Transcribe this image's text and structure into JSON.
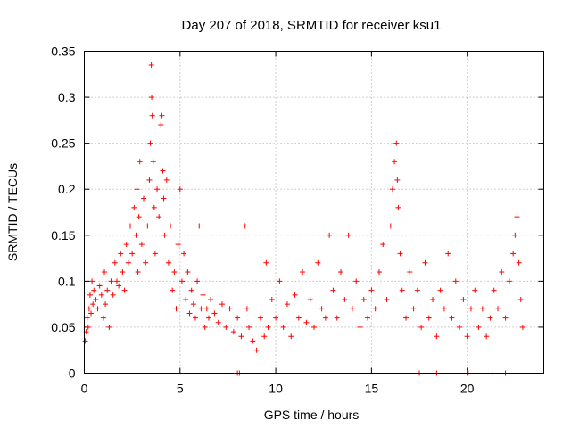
{
  "chart_data": {
    "type": "scatter",
    "title": "Day 207 of 2018, SRMTID for receiver ksu1",
    "xlabel": "GPS time / hours",
    "ylabel": "SRMTID / TECUs",
    "xlim": [
      0,
      24
    ],
    "ylim": [
      0,
      0.35
    ],
    "xticks": [
      0,
      5,
      10,
      15,
      20
    ],
    "xtick_labels": [
      "0",
      "5",
      "10",
      "15",
      "20"
    ],
    "yticks": [
      0,
      0.05,
      0.1,
      0.15,
      0.2,
      0.25,
      0.3,
      0.35
    ],
    "ytick_labels": [
      "0",
      "0.05",
      "0.1",
      "0.15",
      "0.2",
      "0.25",
      "0.3",
      "0.35"
    ],
    "grid": true,
    "legend": "none",
    "marker": "plus",
    "color": "#ff0000",
    "series": [
      {
        "name": "SRMTID",
        "points": [
          [
            0.05,
            0.035
          ],
          [
            0.1,
            0.045
          ],
          [
            0.15,
            0.06
          ],
          [
            0.2,
            0.05
          ],
          [
            0.25,
            0.07
          ],
          [
            0.3,
            0.085
          ],
          [
            0.35,
            0.065
          ],
          [
            0.4,
            0.1
          ],
          [
            0.45,
            0.075
          ],
          [
            0.5,
            0.09
          ],
          [
            0.6,
            0.08
          ],
          [
            0.7,
            0.07
          ],
          [
            0.8,
            0.095
          ],
          [
            0.9,
            0.085
          ],
          [
            1.0,
            0.06
          ],
          [
            1.05,
            0.11
          ],
          [
            1.1,
            0.075
          ],
          [
            1.2,
            0.09
          ],
          [
            1.3,
            0.05
          ],
          [
            1.4,
            0.1
          ],
          [
            1.5,
            0.085
          ],
          [
            1.6,
            0.12
          ],
          [
            1.7,
            0.1
          ],
          [
            1.8,
            0.095
          ],
          [
            1.9,
            0.13
          ],
          [
            2.0,
            0.11
          ],
          [
            2.1,
            0.09
          ],
          [
            2.2,
            0.14
          ],
          [
            2.3,
            0.12
          ],
          [
            2.4,
            0.16
          ],
          [
            2.5,
            0.13
          ],
          [
            2.6,
            0.18
          ],
          [
            2.7,
            0.15
          ],
          [
            2.75,
            0.2
          ],
          [
            2.8,
            0.11
          ],
          [
            2.85,
            0.17
          ],
          [
            2.9,
            0.23
          ],
          [
            3.0,
            0.14
          ],
          [
            3.1,
            0.19
          ],
          [
            3.2,
            0.12
          ],
          [
            3.3,
            0.16
          ],
          [
            3.4,
            0.21
          ],
          [
            3.45,
            0.25
          ],
          [
            3.5,
            0.335
          ],
          [
            3.52,
            0.3
          ],
          [
            3.55,
            0.28
          ],
          [
            3.6,
            0.23
          ],
          [
            3.65,
            0.18
          ],
          [
            3.7,
            0.13
          ],
          [
            3.8,
            0.2
          ],
          [
            3.9,
            0.17
          ],
          [
            4.0,
            0.27
          ],
          [
            4.05,
            0.28
          ],
          [
            4.1,
            0.22
          ],
          [
            4.15,
            0.19
          ],
          [
            4.2,
            0.15
          ],
          [
            4.3,
            0.21
          ],
          [
            4.4,
            0.12
          ],
          [
            4.5,
            0.16
          ],
          [
            4.6,
            0.09
          ],
          [
            4.7,
            0.11
          ],
          [
            4.8,
            0.07
          ],
          [
            4.9,
            0.14
          ],
          [
            5.0,
            0.2
          ],
          [
            5.1,
            0.1
          ],
          [
            5.2,
            0.13
          ],
          [
            5.3,
            0.08
          ],
          [
            5.4,
            0.11
          ],
          [
            5.5,
            0.065
          ],
          [
            5.6,
            0.09
          ],
          [
            5.7,
            0.075
          ],
          [
            5.8,
            0.06
          ],
          [
            5.9,
            0.1
          ],
          [
            6.0,
            0.16
          ],
          [
            6.1,
            0.07
          ],
          [
            6.2,
            0.085
          ],
          [
            6.3,
            0.05
          ],
          [
            6.4,
            0.07
          ],
          [
            6.5,
            0.06
          ],
          [
            6.6,
            0.08
          ],
          [
            6.8,
            0.065
          ],
          [
            7.0,
            0.055
          ],
          [
            7.2,
            0.075
          ],
          [
            7.4,
            0.05
          ],
          [
            7.6,
            0.07
          ],
          [
            7.8,
            0.045
          ],
          [
            8.0,
            0.06
          ],
          [
            8.2,
            0.04
          ],
          [
            8.4,
            0.16
          ],
          [
            8.5,
            0.07
          ],
          [
            8.6,
            0.05
          ],
          [
            8.8,
            0.035
          ],
          [
            9.0,
            0.025
          ],
          [
            9.2,
            0.06
          ],
          [
            9.4,
            0.04
          ],
          [
            9.5,
            0.12
          ],
          [
            9.6,
            0.05
          ],
          [
            9.8,
            0.08
          ],
          [
            10.0,
            0.06
          ],
          [
            10.2,
            0.1
          ],
          [
            10.4,
            0.05
          ],
          [
            10.6,
            0.075
          ],
          [
            10.8,
            0.04
          ],
          [
            11.0,
            0.085
          ],
          [
            11.2,
            0.06
          ],
          [
            11.4,
            0.11
          ],
          [
            11.6,
            0.055
          ],
          [
            11.8,
            0.08
          ],
          [
            12.0,
            0.05
          ],
          [
            12.2,
            0.12
          ],
          [
            12.4,
            0.07
          ],
          [
            12.6,
            0.06
          ],
          [
            12.8,
            0.15
          ],
          [
            13.0,
            0.09
          ],
          [
            13.2,
            0.06
          ],
          [
            13.4,
            0.11
          ],
          [
            13.6,
            0.08
          ],
          [
            13.8,
            0.15
          ],
          [
            14.0,
            0.07
          ],
          [
            14.2,
            0.1
          ],
          [
            14.4,
            0.05
          ],
          [
            14.6,
            0.08
          ],
          [
            14.8,
            0.06
          ],
          [
            15.0,
            0.09
          ],
          [
            15.2,
            0.07
          ],
          [
            15.4,
            0.11
          ],
          [
            15.6,
            0.14
          ],
          [
            15.8,
            0.08
          ],
          [
            16.0,
            0.16
          ],
          [
            16.1,
            0.2
          ],
          [
            16.2,
            0.23
          ],
          [
            16.3,
            0.25
          ],
          [
            16.35,
            0.21
          ],
          [
            16.4,
            0.18
          ],
          [
            16.5,
            0.13
          ],
          [
            16.6,
            0.09
          ],
          [
            16.8,
            0.06
          ],
          [
            17.0,
            0.11
          ],
          [
            17.2,
            0.07
          ],
          [
            17.4,
            0.09
          ],
          [
            17.6,
            0.05
          ],
          [
            17.8,
            0.12
          ],
          [
            18.0,
            0.06
          ],
          [
            18.2,
            0.08
          ],
          [
            18.4,
            0.04
          ],
          [
            18.6,
            0.09
          ],
          [
            18.8,
            0.07
          ],
          [
            19.0,
            0.13
          ],
          [
            19.2,
            0.06
          ],
          [
            19.4,
            0.1
          ],
          [
            19.6,
            0.05
          ],
          [
            19.8,
            0.08
          ],
          [
            20.0,
            0.04
          ],
          [
            20.2,
            0.07
          ],
          [
            20.4,
            0.09
          ],
          [
            20.6,
            0.05
          ],
          [
            20.8,
            0.07
          ],
          [
            21.0,
            0.04
          ],
          [
            21.2,
            0.06
          ],
          [
            21.4,
            0.09
          ],
          [
            21.6,
            0.07
          ],
          [
            21.8,
            0.11
          ],
          [
            22.0,
            0.06
          ],
          [
            22.2,
            0.1
          ],
          [
            22.4,
            0.13
          ],
          [
            22.5,
            0.15
          ],
          [
            22.6,
            0.17
          ],
          [
            22.7,
            0.12
          ],
          [
            22.8,
            0.08
          ],
          [
            22.9,
            0.05
          ]
        ]
      }
    ],
    "zero_markers_x": [
      8.0,
      8.1,
      17.5,
      18.4,
      20.0,
      20.05,
      21.3,
      22.0
    ]
  }
}
